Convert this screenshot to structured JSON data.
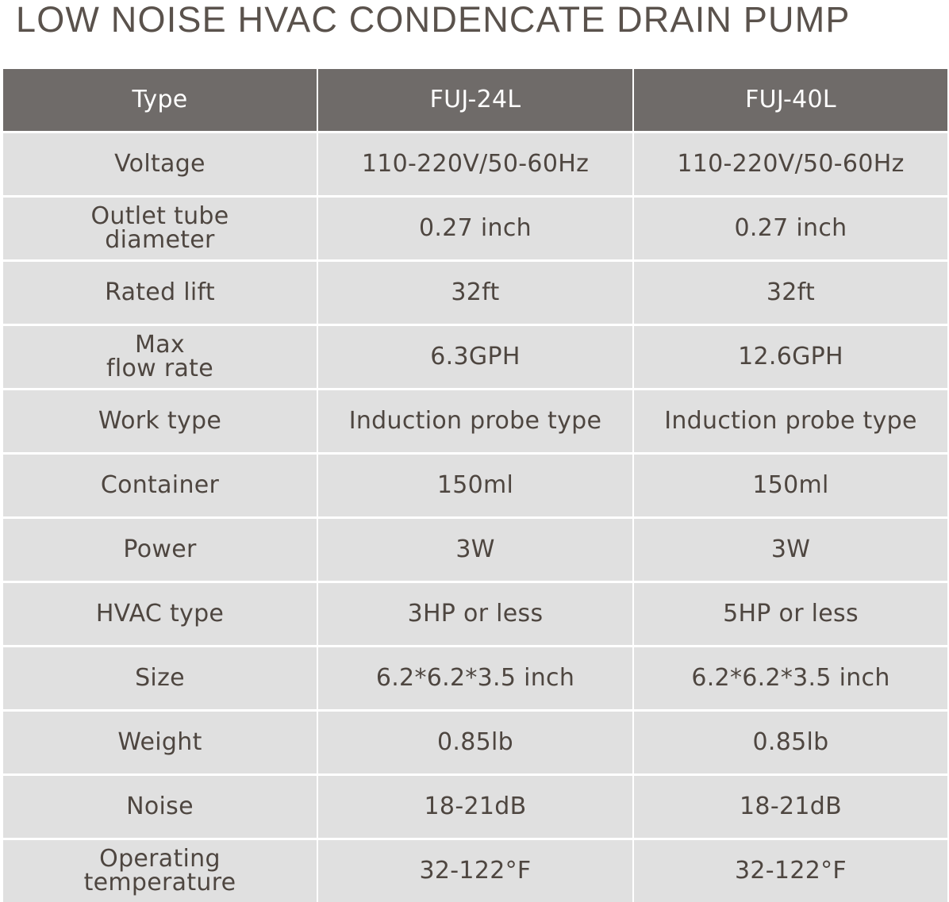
{
  "title": "LOW NOISE HVAC CONDENCATE DRAIN PUMP",
  "table": {
    "headers": [
      "Type",
      "FUJ-24L",
      "FUJ-40L"
    ],
    "rows": [
      [
        "Voltage",
        "110-220V/50-60Hz",
        "110-220V/50-60Hz"
      ],
      [
        "Outlet tube\ndiameter",
        "0.27 inch",
        "0.27 inch"
      ],
      [
        "Rated lift",
        "32ft",
        "32ft"
      ],
      [
        "Max\nflow rate",
        "6.3GPH",
        "12.6GPH"
      ],
      [
        "Work type",
        "Induction probe type",
        "Induction probe type"
      ],
      [
        "Container",
        "150ml",
        "150ml"
      ],
      [
        "Power",
        "3W",
        "3W"
      ],
      [
        "HVAC type",
        "3HP or less",
        "5HP or less"
      ],
      [
        "Size",
        "6.2*6.2*3.5 inch",
        "6.2*6.2*3.5 inch"
      ],
      [
        "Weight",
        "0.85lb",
        "0.85lb"
      ],
      [
        "Noise",
        "18-21dB",
        "18-21dB"
      ],
      [
        "Operating\ntemperature",
        "32-122°F",
        "32-122°F"
      ]
    ]
  },
  "colors": {
    "header_bg": "#6f6b69",
    "cell_bg": "#e0e0e0",
    "text": "#4e4640"
  }
}
